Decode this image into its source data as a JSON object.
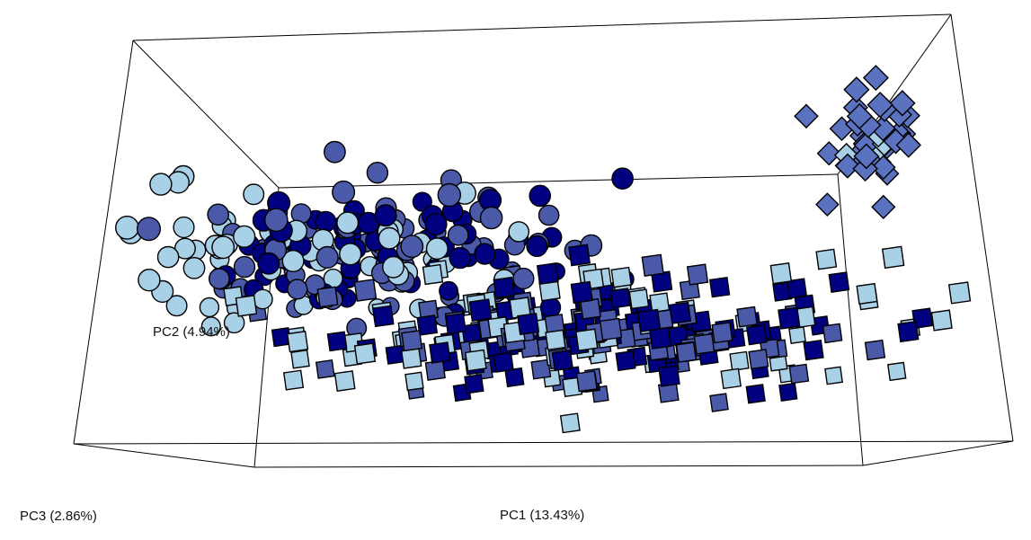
{
  "chart_data": {
    "type": "scatter",
    "projection": "3d",
    "title": "",
    "axes": {
      "pc1": {
        "label": "PC1 (13.43%)",
        "range": [
          -1,
          1
        ]
      },
      "pc2": {
        "label": "PC2 (4.94%)",
        "range": [
          -1,
          1
        ]
      },
      "pc3": {
        "label": "PC3 (2.86%)",
        "range": [
          -1,
          1
        ]
      }
    },
    "grid": false,
    "legend": "none",
    "marker_edge_color": "#000000",
    "series": [
      {
        "marker": "circle",
        "color": "#000080",
        "count": 70,
        "center": [
          -0.45,
          0.18,
          0.0
        ],
        "spread": [
          0.28,
          0.14,
          0.35
        ],
        "seed": 11
      },
      {
        "marker": "circle",
        "color": "#4a5aa8",
        "count": 70,
        "center": [
          -0.55,
          0.16,
          0.0
        ],
        "spread": [
          0.3,
          0.15,
          0.35
        ],
        "seed": 23
      },
      {
        "marker": "circle",
        "color": "#a8d0e6",
        "count": 65,
        "center": [
          -0.6,
          0.14,
          0.0
        ],
        "spread": [
          0.32,
          0.16,
          0.35
        ],
        "seed": 37
      },
      {
        "marker": "square",
        "color": "#000080",
        "count": 95,
        "center": [
          0.15,
          -0.3,
          0.0
        ],
        "spread": [
          0.35,
          0.15,
          0.35
        ],
        "seed": 41
      },
      {
        "marker": "square",
        "color": "#4a5aa8",
        "count": 90,
        "center": [
          0.12,
          -0.32,
          0.0
        ],
        "spread": [
          0.38,
          0.16,
          0.35
        ],
        "seed": 53
      },
      {
        "marker": "square",
        "color": "#a8d0e6",
        "count": 85,
        "center": [
          0.05,
          -0.33,
          0.0
        ],
        "spread": [
          0.45,
          0.17,
          0.35
        ],
        "seed": 67
      },
      {
        "marker": "diamond",
        "color": "#5a72c0",
        "count": 38,
        "center": [
          0.82,
          0.55,
          0.65
        ],
        "spread": [
          0.06,
          0.1,
          0.18
        ],
        "seed": 79
      },
      {
        "marker": "diamond",
        "color": "#a8d0e6",
        "count": 4,
        "center": [
          0.82,
          0.52,
          0.65
        ],
        "spread": [
          0.06,
          0.06,
          0.12
        ],
        "seed": 83
      }
    ]
  }
}
